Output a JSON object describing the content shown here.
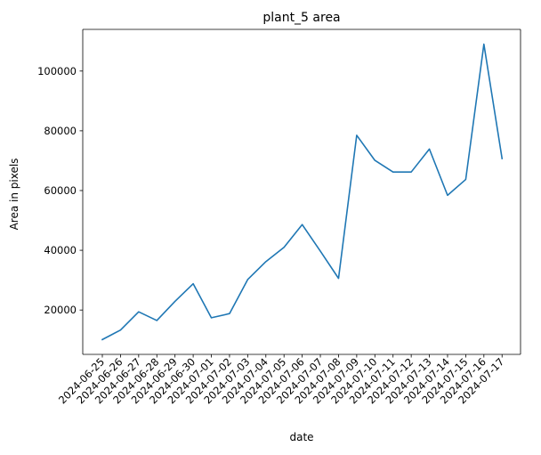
{
  "chart_data": {
    "type": "line",
    "title": "plant_5 area",
    "xlabel": "date",
    "ylabel": "Area in pixels",
    "categories": [
      "2024-06-25",
      "2024-06-26",
      "2024-06-27",
      "2024-06-28",
      "2024-06-29",
      "2024-06-30",
      "2024-07-01",
      "2024-07-02",
      "2024-07-03",
      "2024-07-04",
      "2024-07-05",
      "2024-07-06",
      "2024-07-07",
      "2024-07-08",
      "2024-07-09",
      "2024-07-10",
      "2024-07-11",
      "2024-07-12",
      "2024-07-13",
      "2024-07-14",
      "2024-07-15",
      "2024-07-16",
      "2024-07-17"
    ],
    "series": [
      {
        "color": "#1f77b4",
        "values": [
          10100,
          13300,
          19400,
          16500,
          22900,
          28800,
          17400,
          18800,
          30200,
          36200,
          41000,
          48600,
          39700,
          30600,
          78500,
          70100,
          66200,
          66200,
          73900,
          58400,
          63700,
          109000,
          70700
        ]
      }
    ],
    "yticks": [
      20000,
      40000,
      60000,
      80000,
      100000
    ],
    "ylim": [
      5150,
      113950
    ],
    "grid": false,
    "legend": "none"
  }
}
